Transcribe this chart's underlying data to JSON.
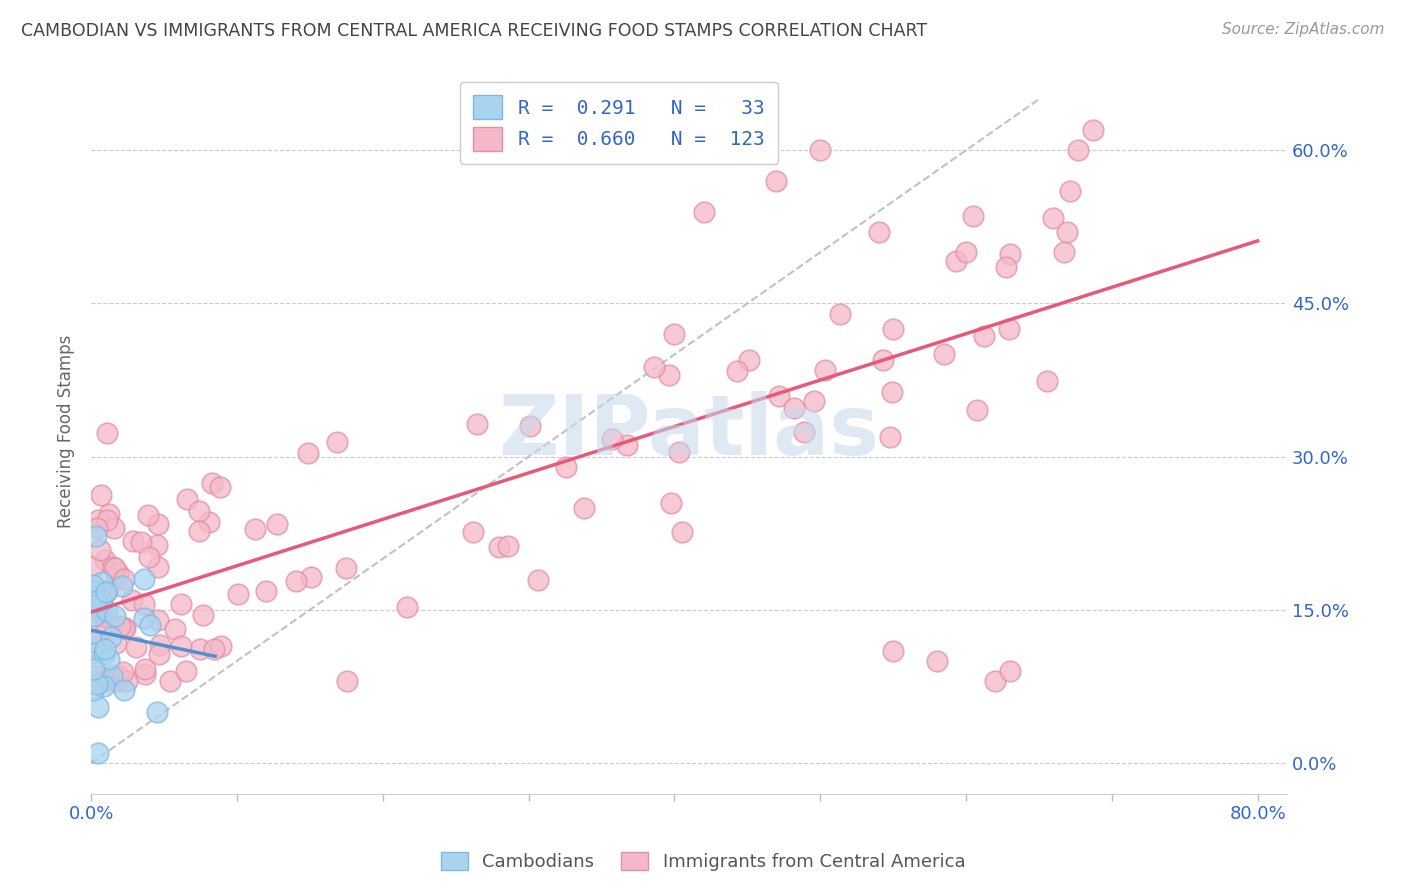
{
  "title": "CAMBODIAN VS IMMIGRANTS FROM CENTRAL AMERICA RECEIVING FOOD STAMPS CORRELATION CHART",
  "source": "Source: ZipAtlas.com",
  "ylabel": "Receiving Food Stamps",
  "xlim": [
    0.0,
    0.82
  ],
  "ylim": [
    -0.03,
    0.68
  ],
  "grid_color": "#cccccc",
  "background_color": "#ffffff",
  "cambodian_color": "#a8d4f0",
  "central_america_color": "#f5b8c8",
  "cambodian_line_color": "#5090d0",
  "central_america_line_color": "#e85878",
  "diagonal_color": "#bbbbbb",
  "cambodian_R": 0.291,
  "cambodian_N": 33,
  "central_america_R": 0.66,
  "central_america_N": 123,
  "legend_label_1": "Cambodians",
  "legend_label_2": "Immigrants from Central America",
  "watermark": "ZIPatlas",
  "title_color": "#444444",
  "tick_label_color": "#3366cc",
  "ylabel_color": "#666666",
  "source_color": "#999999",
  "yticks": [
    0.0,
    0.15,
    0.3,
    0.45,
    0.6
  ],
  "ytick_labels": [
    "0.0%",
    "15.0%",
    "30.0%",
    "45.0%",
    "60.0%"
  ],
  "xticks": [
    0.0,
    0.1,
    0.2,
    0.3,
    0.4,
    0.5,
    0.6,
    0.7,
    0.8
  ],
  "xtick_show": [
    "0.0%",
    "",
    "",
    "",
    "",
    "",
    "",
    "",
    "80.0%"
  ]
}
